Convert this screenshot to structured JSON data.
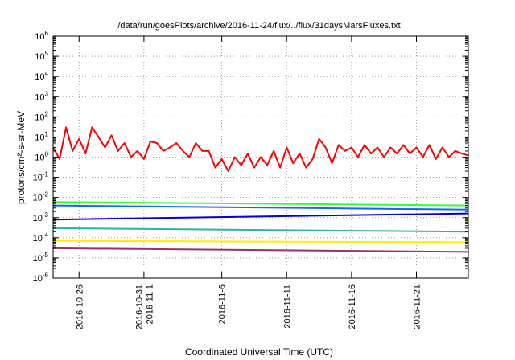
{
  "chart_data": {
    "type": "line",
    "title": "/data/run/goesPlots/archive/2016-11-24/flux/../flux/31daysMarsFluxes.txt",
    "xlabel": "Coordinated Universal Time (UTC)",
    "ylabel": "protons/cm²-s-sr-MeV",
    "y_scale": "log",
    "ylim": [
      1e-06,
      1000000.0
    ],
    "xlim": [
      "2016-10-24",
      "2016-11-25"
    ],
    "y_tick_labels": [
      {
        "value": 1e-06,
        "base": "10",
        "exp": "-6"
      },
      {
        "value": 1e-05,
        "base": "10",
        "exp": "-5"
      },
      {
        "value": 0.0001,
        "base": "10",
        "exp": "-4"
      },
      {
        "value": 0.001,
        "base": "10",
        "exp": "-3"
      },
      {
        "value": 0.01,
        "base": "10",
        "exp": "-2"
      },
      {
        "value": 0.1,
        "base": "10",
        "exp": "-1"
      },
      {
        "value": 1,
        "base": "10",
        "exp": "0"
      },
      {
        "value": 10,
        "base": "10",
        "exp": "1"
      },
      {
        "value": 100,
        "base": "10",
        "exp": "2"
      },
      {
        "value": 1000,
        "base": "10",
        "exp": "3"
      },
      {
        "value": 10000,
        "base": "10",
        "exp": "4"
      },
      {
        "value": 100000,
        "base": "10",
        "exp": "5"
      },
      {
        "value": 1000000,
        "base": "10",
        "exp": "6"
      }
    ],
    "x_ticks": [
      {
        "date": "2016-10-26",
        "lines": [
          "2016-10-26"
        ]
      },
      {
        "date": "2016-10-31",
        "lines": [
          "2016-10-31",
          "2016-11-1"
        ]
      },
      {
        "date": "2016-11-06",
        "lines": [
          "2016-11-6"
        ]
      },
      {
        "date": "2016-11-11",
        "lines": [
          "2016-11-11"
        ]
      },
      {
        "date": "2016-11-16",
        "lines": [
          "2016-11-16"
        ]
      },
      {
        "date": "2016-11-21",
        "lines": [
          "2016-11-21"
        ]
      }
    ],
    "grid": true,
    "legend": "none",
    "series": [
      {
        "color": "#ff0000",
        "x": [
          "2016-10-24",
          "2016-10-24T12:00",
          "2016-10-25",
          "2016-10-25T12:00",
          "2016-10-26",
          "2016-10-26T12:00",
          "2016-10-27",
          "2016-10-27T12:00",
          "2016-10-28",
          "2016-10-28T12:00",
          "2016-10-29",
          "2016-10-29T12:00",
          "2016-10-30",
          "2016-10-30T12:00",
          "2016-10-31",
          "2016-10-31T12:00",
          "2016-11-01",
          "2016-11-01T12:00",
          "2016-11-02",
          "2016-11-02T12:00",
          "2016-11-03",
          "2016-11-03T12:00",
          "2016-11-04",
          "2016-11-04T12:00",
          "2016-11-05",
          "2016-11-05T12:00",
          "2016-11-06",
          "2016-11-06T12:00",
          "2016-11-07",
          "2016-11-07T12:00",
          "2016-11-08",
          "2016-11-08T12:00",
          "2016-11-09",
          "2016-11-09T12:00",
          "2016-11-10",
          "2016-11-10T12:00",
          "2016-11-11",
          "2016-11-11T12:00",
          "2016-11-12",
          "2016-11-12T12:00",
          "2016-11-13",
          "2016-11-13T12:00",
          "2016-11-14",
          "2016-11-14T12:00",
          "2016-11-15",
          "2016-11-15T12:00",
          "2016-11-16",
          "2016-11-16T12:00",
          "2016-11-17",
          "2016-11-17T12:00",
          "2016-11-18",
          "2016-11-18T12:00",
          "2016-11-19",
          "2016-11-19T12:00",
          "2016-11-20",
          "2016-11-20T12:00",
          "2016-11-21",
          "2016-11-21T12:00",
          "2016-11-22",
          "2016-11-22T12:00",
          "2016-11-23",
          "2016-11-23T12:00",
          "2016-11-24",
          "2016-11-24T12:00",
          "2016-11-25"
        ],
        "y": [
          3,
          0.8,
          30,
          2,
          8,
          1.5,
          30,
          10,
          3,
          12,
          2,
          5,
          1,
          2,
          0.8,
          6,
          5,
          2,
          3,
          5,
          2,
          1,
          5,
          2,
          2,
          0.3,
          0.8,
          0.2,
          1,
          0.4,
          1.5,
          0.3,
          1,
          0.4,
          2,
          0.3,
          3,
          0.5,
          1.5,
          0.3,
          0.8,
          8,
          3,
          0.5,
          4,
          2,
          3,
          1,
          4,
          1.5,
          3,
          1,
          3,
          1.5,
          4,
          1.5,
          3,
          1,
          4,
          0.8,
          3,
          1,
          2,
          1.5,
          1.2
        ]
      },
      {
        "color": "#33ff33",
        "x": [
          "2016-10-24",
          "2016-11-25"
        ],
        "y": [
          0.006,
          0.004
        ]
      },
      {
        "color": "#1166ff",
        "x": [
          "2016-10-24",
          "2016-11-25"
        ],
        "y": [
          0.004,
          0.0025
        ]
      },
      {
        "color": "#0000dd",
        "x": [
          "2016-10-24",
          "2016-11-25"
        ],
        "y": [
          0.0008,
          0.0016
        ]
      },
      {
        "color": "#22bb99",
        "x": [
          "2016-10-24",
          "2016-11-25"
        ],
        "y": [
          0.0003,
          0.0002
        ]
      },
      {
        "color": "#ffee00",
        "x": [
          "2016-10-24",
          "2016-11-25"
        ],
        "y": [
          7e-05,
          6e-05
        ]
      },
      {
        "color": "#993366",
        "x": [
          "2016-10-24",
          "2016-11-25"
        ],
        "y": [
          3e-05,
          2e-05
        ]
      }
    ]
  }
}
